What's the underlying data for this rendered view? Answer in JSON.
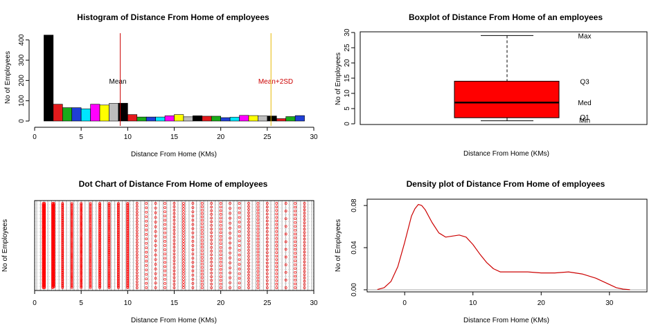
{
  "colors": {
    "mean_line": "#cc0000",
    "mean2sd_line": "#e6b800",
    "box_fill": "#ff0000",
    "dots": "#ff0000",
    "density": "#cc0000",
    "grid_gray": "#b0b0b0",
    "hist_palette": [
      "#000000",
      "#e31a1c",
      "#1aab1a",
      "#1f3fd6",
      "#00e5ff",
      "#ff00ff",
      "#ffff00",
      "#bdbdbd"
    ]
  },
  "chart_data": [
    {
      "id": "hist",
      "type": "bar",
      "title": "Histogram of Distance From Home of employees",
      "xlabel": "Distance From Home (KMs)",
      "ylabel": "No of Employees",
      "xlim": [
        0,
        30
      ],
      "ylim": [
        0,
        440
      ],
      "xticks": [
        0,
        5,
        10,
        15,
        20,
        25,
        30
      ],
      "yticks": [
        0,
        100,
        200,
        300,
        400
      ],
      "bins": [
        [
          1,
          2
        ],
        [
          2,
          3
        ],
        [
          3,
          4
        ],
        [
          4,
          5
        ],
        [
          5,
          6
        ],
        [
          6,
          7
        ],
        [
          7,
          8
        ],
        [
          8,
          9
        ],
        [
          9,
          10
        ],
        [
          10,
          11
        ],
        [
          11,
          12
        ],
        [
          12,
          13
        ],
        [
          13,
          14
        ],
        [
          14,
          15
        ],
        [
          15,
          16
        ],
        [
          16,
          17
        ],
        [
          17,
          18
        ],
        [
          18,
          19
        ],
        [
          19,
          20
        ],
        [
          20,
          21
        ],
        [
          21,
          22
        ],
        [
          22,
          23
        ],
        [
          23,
          24
        ],
        [
          24,
          25
        ],
        [
          25,
          26
        ],
        [
          26,
          27
        ],
        [
          27,
          28
        ],
        [
          28,
          29
        ]
      ],
      "values": [
        424,
        83,
        66,
        66,
        60,
        83,
        79,
        87,
        88,
        32,
        20,
        20,
        20,
        26,
        32,
        21,
        26,
        24,
        24,
        17,
        19,
        28,
        27,
        25,
        25,
        12,
        22,
        27
      ],
      "mean": 9.2,
      "mean_label": "Mean",
      "mean_plus_2sd": 25.4,
      "mean_plus_2sd_label": "Mean+2SD"
    },
    {
      "id": "box",
      "type": "boxplot",
      "title": "Boxplot of Distance From Home of an employees",
      "xlabel": "Distance From Home (KMs)",
      "ylabel": "No of Employees",
      "ylim": [
        0,
        30
      ],
      "yticks": [
        0,
        5,
        10,
        15,
        20,
        25,
        30
      ],
      "min": 1,
      "q1": 2,
      "median": 7,
      "q3": 14,
      "max": 29,
      "labels": {
        "max": "Max",
        "q3": "Q3",
        "median": "Med",
        "q1": "Q1",
        "min": "Min"
      }
    },
    {
      "id": "dot",
      "type": "scatter",
      "title": "Dot Chart of Distance From Home of employees",
      "xlabel": "Distance From Home (KMs)",
      "ylabel": "No of Employees",
      "xlim": [
        0,
        30
      ],
      "xticks": [
        0,
        5,
        10,
        15,
        20,
        25,
        30
      ],
      "x_values": [
        1,
        2,
        3,
        4,
        5,
        6,
        7,
        8,
        9,
        10,
        11,
        12,
        13,
        14,
        15,
        16,
        17,
        18,
        19,
        20,
        21,
        22,
        23,
        24,
        25,
        26,
        27,
        28,
        29
      ],
      "counts": [
        208,
        211,
        84,
        64,
        65,
        59,
        84,
        80,
        85,
        86,
        29,
        20,
        19,
        21,
        26,
        32,
        21,
        26,
        24,
        24,
        18,
        19,
        28,
        27,
        25,
        25,
        12,
        23,
        27
      ]
    },
    {
      "id": "density",
      "type": "line",
      "title": "Density plot of Distance From Home of employees",
      "xlabel": "Distance From Home (KMs)",
      "ylabel": "No of Employees",
      "xlim": [
        -5.5,
        35.5
      ],
      "ylim": [
        -0.002,
        0.086
      ],
      "xticks": [
        0,
        10,
        20,
        30
      ],
      "yticks": [
        0,
        0.04,
        0.08
      ],
      "ytick_labels": [
        "0.00",
        "0.04",
        "0.08"
      ],
      "x": [
        -4,
        -3,
        -2,
        -1,
        0,
        1,
        1.5,
        2,
        2.5,
        3,
        4,
        5,
        6,
        7,
        8,
        9,
        10,
        11,
        12,
        13,
        14,
        16,
        18,
        20,
        22,
        24,
        26,
        28,
        30,
        31,
        32,
        33
      ],
      "y": [
        0.0002,
        0.002,
        0.008,
        0.022,
        0.045,
        0.07,
        0.077,
        0.081,
        0.08,
        0.076,
        0.064,
        0.054,
        0.05,
        0.051,
        0.052,
        0.05,
        0.043,
        0.034,
        0.026,
        0.02,
        0.017,
        0.017,
        0.017,
        0.016,
        0.016,
        0.017,
        0.015,
        0.011,
        0.005,
        0.002,
        0.0006,
        0.0001
      ]
    }
  ]
}
